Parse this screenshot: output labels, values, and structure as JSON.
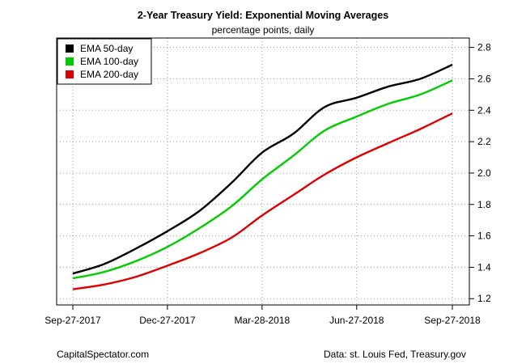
{
  "chart_data": {
    "type": "line",
    "title": "2-Year Treasury Yield: Exponential Moving Averages",
    "subtitle": "percentage points, daily",
    "xlabel": "",
    "ylabel": "",
    "x_ticks": [
      "Sep-27-2017",
      "Dec-27-2017",
      "Mar-28-2018",
      "Jun-27-2018",
      "Sep-27-2018"
    ],
    "y_ticks": [
      "1.2",
      "1.4",
      "1.6",
      "1.8",
      "2.0",
      "2.2",
      "2.4",
      "2.6",
      "2.8"
    ],
    "xlim": [
      "2017-09-27",
      "2018-09-27"
    ],
    "ylim": [
      1.16,
      2.86
    ],
    "y_axis_side": "right",
    "grid": true,
    "legend_position": "top-left",
    "series": [
      {
        "name": "EMA 50-day",
        "color": "#000000",
        "x": [
          "2017-09-27",
          "2017-10-27",
          "2017-11-27",
          "2017-12-27",
          "2018-01-27",
          "2018-02-27",
          "2018-03-28",
          "2018-04-27",
          "2018-05-27",
          "2018-06-27",
          "2018-07-27",
          "2018-08-27",
          "2018-09-27"
        ],
        "values": [
          1.36,
          1.42,
          1.52,
          1.63,
          1.76,
          1.94,
          2.13,
          2.25,
          2.42,
          2.48,
          2.55,
          2.6,
          2.69
        ]
      },
      {
        "name": "EMA 100-day",
        "color": "#00cc00",
        "x": [
          "2017-09-27",
          "2017-10-27",
          "2017-11-27",
          "2017-12-27",
          "2018-01-27",
          "2018-02-27",
          "2018-03-28",
          "2018-04-27",
          "2018-05-27",
          "2018-06-27",
          "2018-07-27",
          "2018-08-27",
          "2018-09-27"
        ],
        "values": [
          1.33,
          1.37,
          1.44,
          1.53,
          1.65,
          1.79,
          1.96,
          2.11,
          2.27,
          2.36,
          2.44,
          2.5,
          2.59
        ]
      },
      {
        "name": "EMA 200-day",
        "color": "#dd0000",
        "x": [
          "2017-09-27",
          "2017-10-27",
          "2017-11-27",
          "2017-12-27",
          "2018-01-27",
          "2018-02-27",
          "2018-03-28",
          "2018-04-27",
          "2018-05-27",
          "2018-06-27",
          "2018-07-27",
          "2018-08-27",
          "2018-09-27"
        ],
        "values": [
          1.26,
          1.29,
          1.34,
          1.41,
          1.49,
          1.59,
          1.73,
          1.86,
          1.99,
          2.1,
          2.19,
          2.28,
          2.38
        ]
      }
    ]
  },
  "footer": {
    "left": "CapitalSpectator.com",
    "right": "Data: st. Louis Fed, Treasury.gov"
  }
}
